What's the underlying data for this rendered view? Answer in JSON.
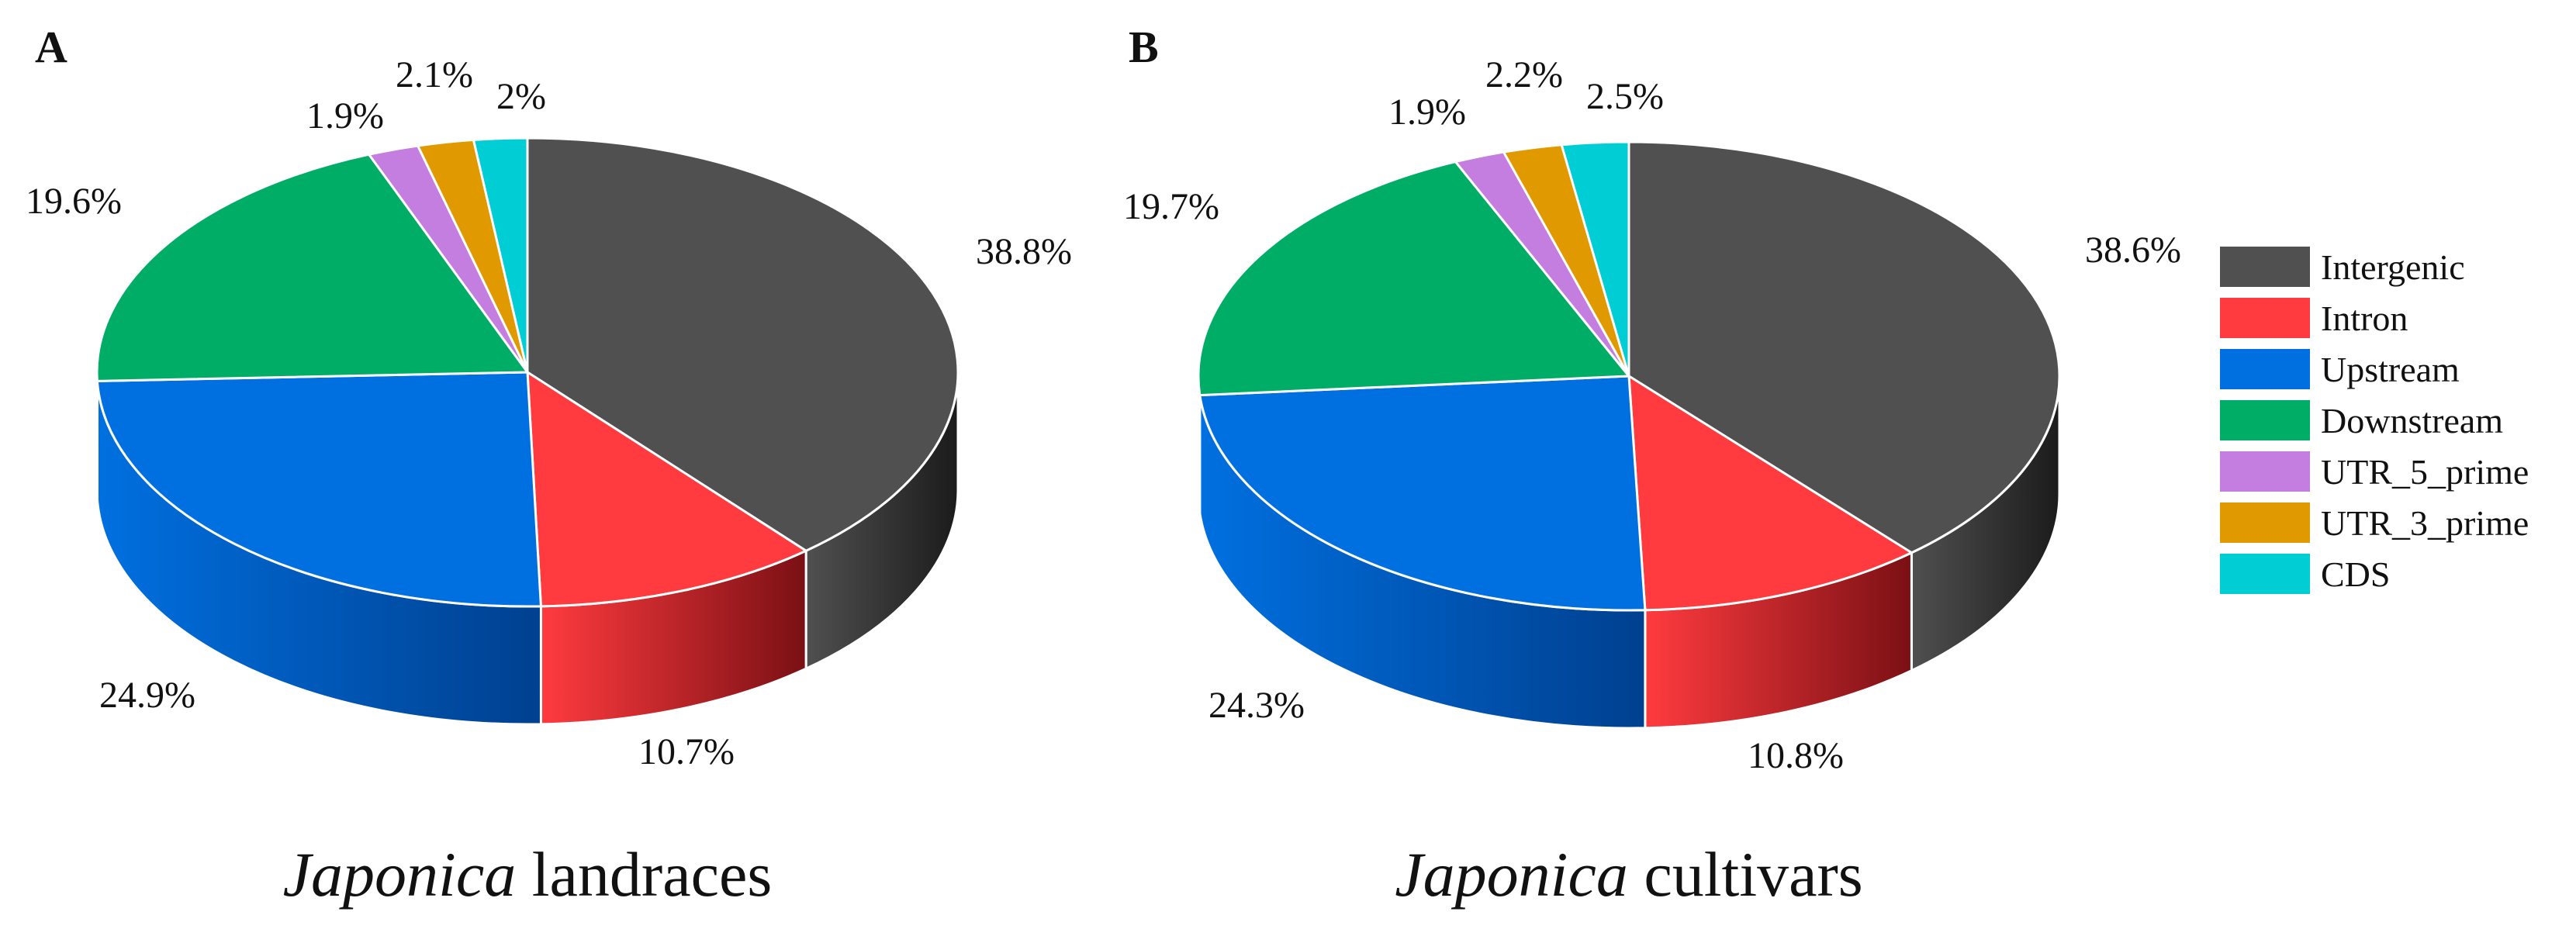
{
  "categories": [
    "Intergenic",
    "Intron",
    "Upstream",
    "Downstream",
    "UTR_5_prime",
    "UTR_3_prime",
    "CDS"
  ],
  "colors": [
    "#505050",
    "#ff3b3f",
    "#0070e0",
    "#00ad66",
    "#c47ee0",
    "#e09a00",
    "#00cdd4"
  ],
  "side_colors": [
    "#1b1b1b",
    "#7a1014",
    "#00408f",
    "#006b3e",
    "#7a3f96",
    "#8f6200",
    "#007e84"
  ],
  "chart_data": [
    {
      "type": "pie",
      "panel": "A",
      "title_italic": "Japonica",
      "title_rest": "landraces",
      "categories": [
        "Intergenic",
        "Intron",
        "Upstream",
        "Downstream",
        "UTR_5_prime",
        "UTR_3_prime",
        "CDS"
      ],
      "values": [
        38.8,
        10.7,
        24.9,
        19.6,
        1.9,
        2.1,
        2.0
      ],
      "labels": [
        "38.8%",
        "10.7%",
        "24.9%",
        "19.6%",
        "1.9%",
        "2.1%",
        "2%"
      ]
    },
    {
      "type": "pie",
      "panel": "B",
      "title_italic": "Japonica",
      "title_rest": "cultivars",
      "categories": [
        "Intergenic",
        "Intron",
        "Upstream",
        "Downstream",
        "UTR_5_prime",
        "UTR_3_prime",
        "CDS"
      ],
      "values": [
        38.6,
        10.8,
        24.3,
        19.7,
        1.9,
        2.2,
        2.5
      ],
      "labels": [
        "38.6%",
        "10.8%",
        "24.3%",
        "19.7%",
        "1.9%",
        "2.2%",
        "2.5%"
      ]
    }
  ],
  "legend": {
    "position": "right",
    "items": [
      "Intergenic",
      "Intron",
      "Upstream",
      "Downstream",
      "UTR_5_prime",
      "UTR_3_prime",
      "CDS"
    ]
  }
}
